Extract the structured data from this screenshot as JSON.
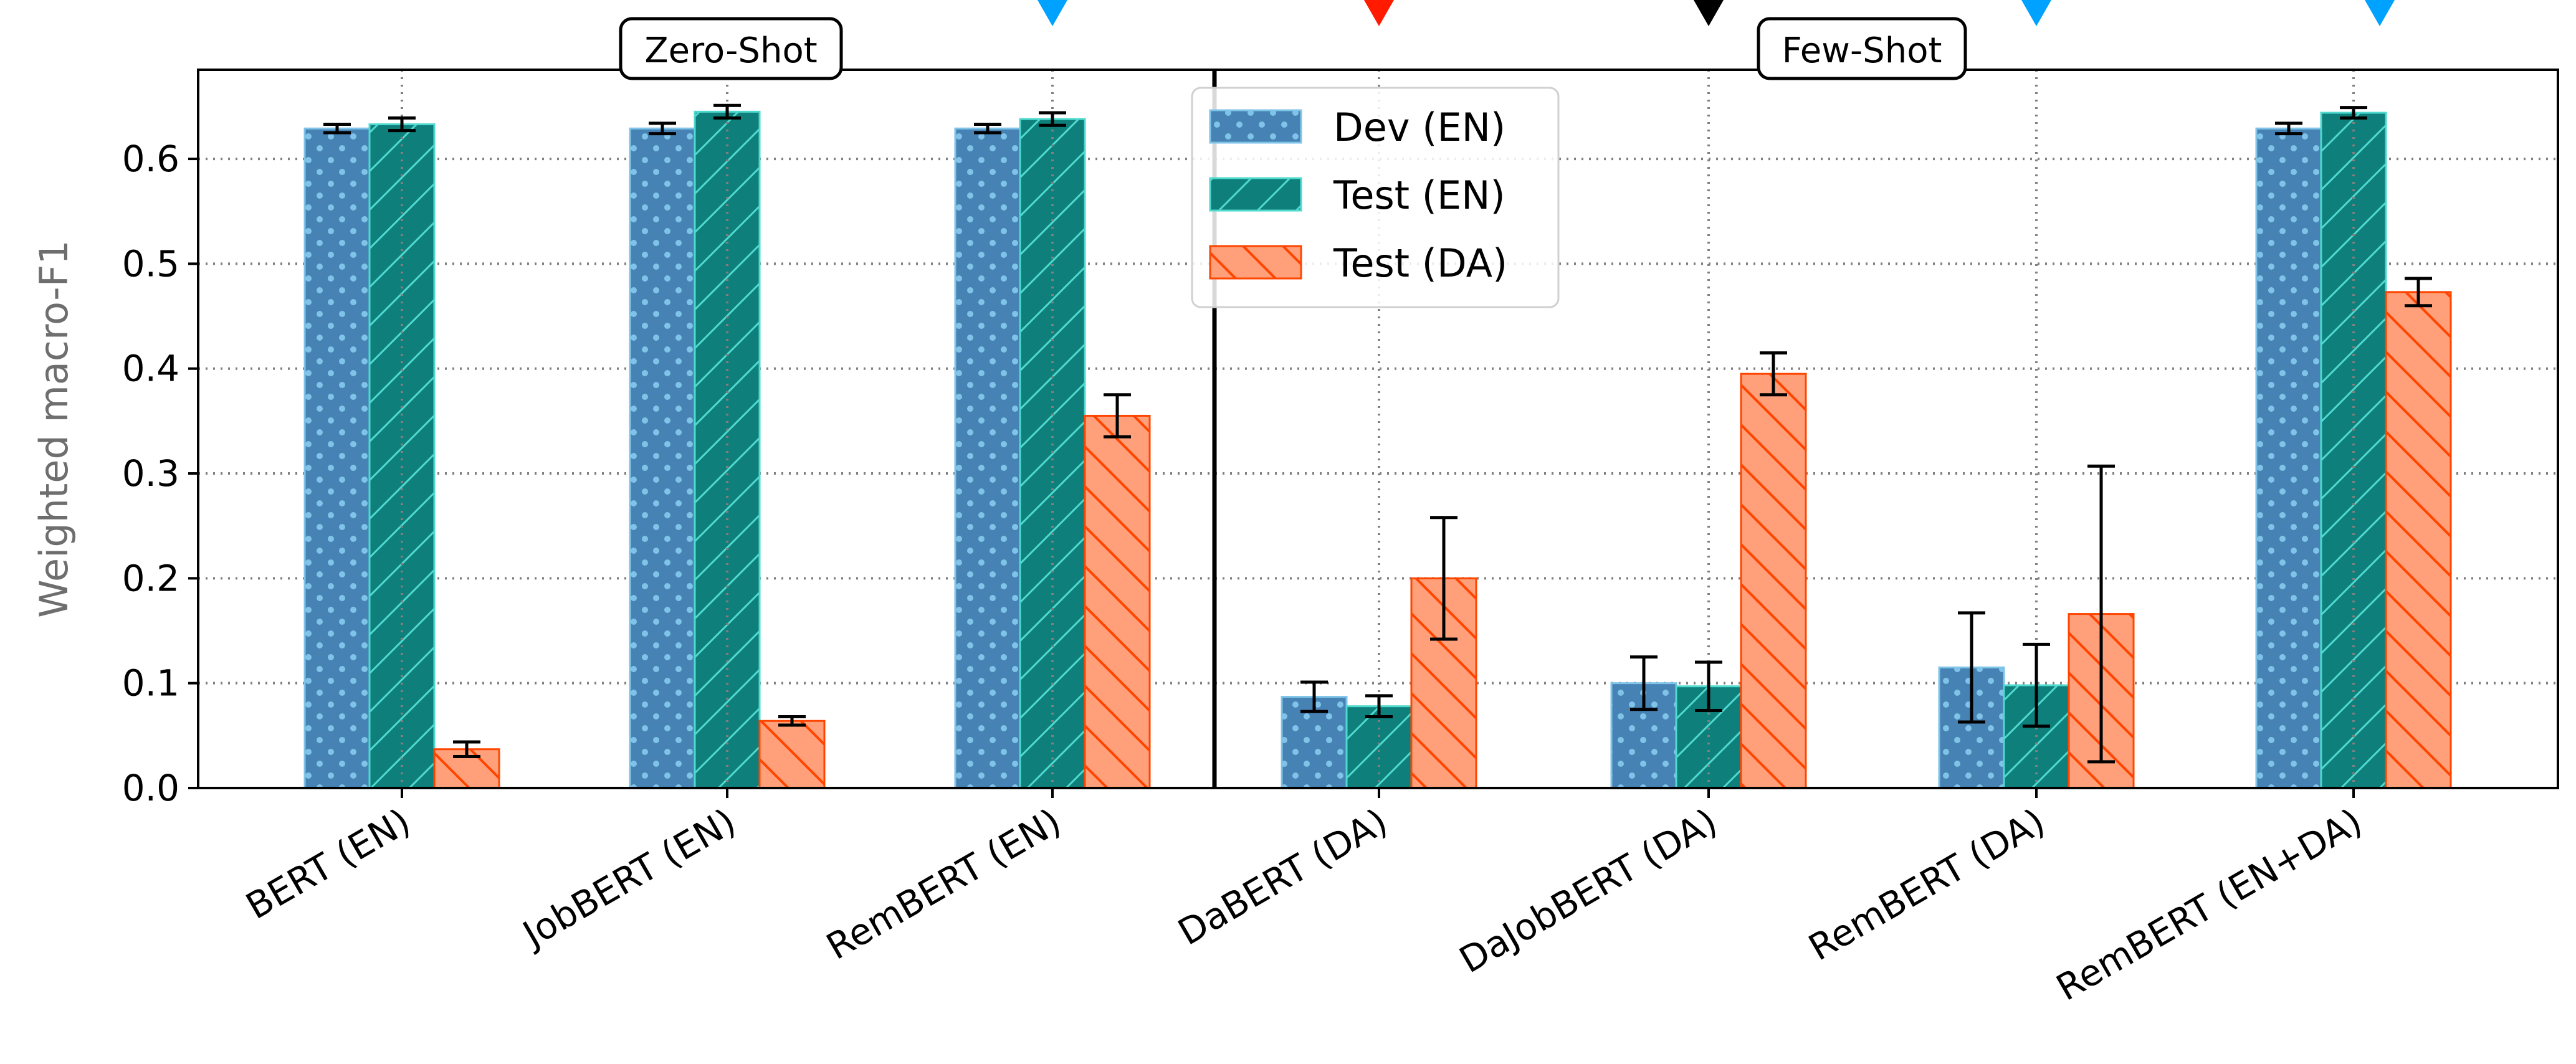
{
  "colors": {
    "dev_en": "#4682b4",
    "dev_en_edge": "#7fc4e8",
    "test_en": "#0e7f7a",
    "test_en_edge": "#4fd9cf",
    "test_da": "#ffa07a",
    "test_da_edge": "#ff4500",
    "marker_blue": "#00a2ff",
    "marker_red": "#ff1a00",
    "marker_black": "#000000",
    "grid": "#808080"
  },
  "chart_data": {
    "type": "bar",
    "title": "",
    "xlabel": "",
    "ylabel": "Weighted macro-F1",
    "ylim": [
      0,
      0.685
    ],
    "yticks": [
      "0.0",
      "0.1",
      "0.2",
      "0.3",
      "0.4",
      "0.5",
      "0.6"
    ],
    "grid": true,
    "legend_position": "top-center",
    "categories": [
      "BERT (EN)",
      "JobBERT (EN)",
      "RemBERT (EN)",
      "DaBERT (DA)",
      "DaJobBERT (DA)",
      "RemBERT (DA)",
      "RemBERT (EN+DA)"
    ],
    "series": [
      {
        "name": "Dev (EN)",
        "values": [
          0.629,
          0.629,
          0.629,
          0.087,
          0.1,
          0.115,
          0.629
        ],
        "errors": [
          0.004,
          0.005,
          0.004,
          0.014,
          0.025,
          0.052,
          0.005
        ],
        "pattern": "dots",
        "color_key": "dev_en"
      },
      {
        "name": "Test (EN)",
        "values": [
          0.633,
          0.645,
          0.638,
          0.078,
          0.097,
          0.098,
          0.644
        ],
        "errors": [
          0.006,
          0.006,
          0.006,
          0.01,
          0.023,
          0.039,
          0.005
        ],
        "pattern": "forward-hatch",
        "color_key": "test_en"
      },
      {
        "name": "Test (DA)",
        "values": [
          0.037,
          0.064,
          0.355,
          0.2,
          0.395,
          0.166,
          0.473
        ],
        "errors": [
          0.007,
          0.004,
          0.02,
          0.058,
          0.02,
          0.141,
          0.013
        ],
        "pattern": "back-hatch",
        "color_key": "test_da"
      }
    ],
    "annotations": [
      {
        "text": "Zero-Shot",
        "between": [
          0,
          2
        ]
      },
      {
        "text": "Few-Shot",
        "between": [
          3,
          6
        ]
      }
    ],
    "section_divider_after_category": 2,
    "top_markers": [
      {
        "category": 2,
        "color_key": "marker_blue"
      },
      {
        "category": 3,
        "color_key": "marker_red"
      },
      {
        "category": 4,
        "color_key": "marker_black"
      },
      {
        "category": 5,
        "color_key": "marker_blue"
      },
      {
        "category": 6,
        "color_key": "marker_blue"
      }
    ]
  }
}
